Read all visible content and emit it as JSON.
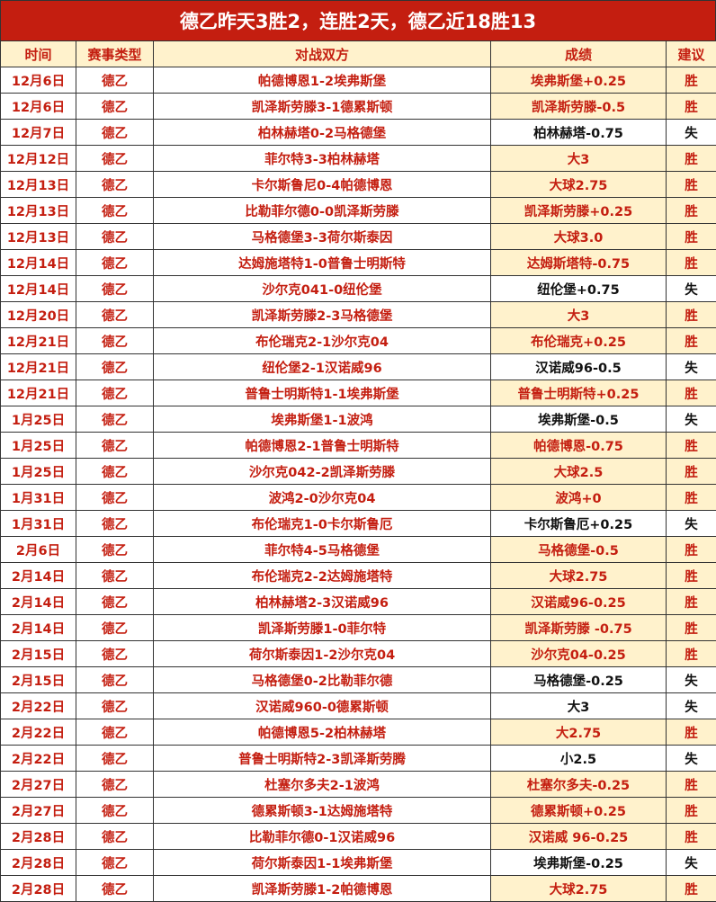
{
  "title": "德乙昨天3胜2，连胜2天，德乙近18胜13",
  "headers": [
    "时间",
    "赛事类型",
    "对战双方",
    "成绩",
    "建议"
  ],
  "colors": {
    "title_bg": "#c41e10",
    "header_bg": "#fff2cc",
    "win_text": "#c41e10",
    "loss_text": "#111111"
  },
  "rows": [
    [
      "12月6日",
      "德乙",
      "帕德博恩1-2埃弗斯堡",
      "埃弗斯堡+0.25",
      "胜"
    ],
    [
      "12月6日",
      "德乙",
      "凯泽斯劳滕3-1德累斯顿",
      "凯泽斯劳滕-0.5",
      "胜"
    ],
    [
      "12月7日",
      "德乙",
      "柏林赫塔0-2马格德堡",
      "柏林赫塔-0.75",
      "失"
    ],
    [
      "12月12日",
      "德乙",
      "菲尔特3-3柏林赫塔",
      "大3",
      "胜"
    ],
    [
      "12月13日",
      "德乙",
      "卡尔斯鲁尼0-4帕德博恩",
      "大球2.75",
      "胜"
    ],
    [
      "12月13日",
      "德乙",
      "比勒菲尔德0-0凯泽斯劳滕",
      "凯泽斯劳滕+0.25",
      "胜"
    ],
    [
      "12月13日",
      "德乙",
      "马格德堡3-3荷尔斯泰因",
      "大球3.0",
      "胜"
    ],
    [
      "12月14日",
      "德乙",
      "达姆施塔特1-0普鲁士明斯特",
      "达姆斯塔特-0.75",
      "胜"
    ],
    [
      "12月14日",
      "德乙",
      "沙尔克041-0纽伦堡",
      "纽伦堡+0.75",
      "失"
    ],
    [
      "12月20日",
      "德乙",
      "凯泽斯劳滕2-3马格德堡",
      "大3",
      "胜"
    ],
    [
      "12月21日",
      "德乙",
      "布伦瑞克2-1沙尔克04",
      "布伦瑞克+0.25",
      "胜"
    ],
    [
      "12月21日",
      "德乙",
      "纽伦堡2-1汉诺威96",
      "汉诺威96-0.5",
      "失"
    ],
    [
      "12月21日",
      "德乙",
      "普鲁士明斯特1-1埃弗斯堡",
      "普鲁士明斯特+0.25",
      "胜"
    ],
    [
      "1月25日",
      "德乙",
      "埃弗斯堡1-1波鸿",
      "埃弗斯堡-0.5",
      "失"
    ],
    [
      "1月25日",
      "德乙",
      "帕德博恩2-1普鲁士明斯特",
      "帕德博恩-0.75",
      "胜"
    ],
    [
      "1月25日",
      "德乙",
      "沙尔克042-2凯泽斯劳滕",
      "大球2.5",
      "胜"
    ],
    [
      "1月31日",
      "德乙",
      "波鸿2-0沙尔克04",
      "波鸿+0",
      "胜"
    ],
    [
      "1月31日",
      "德乙",
      "布伦瑞克1-0卡尔斯鲁厄",
      "卡尔斯鲁厄+0.25",
      "失"
    ],
    [
      "2月6日",
      "德乙",
      "菲尔特4-5马格德堡",
      "马格德堡-0.5",
      "胜"
    ],
    [
      "2月14日",
      "德乙",
      "布伦瑞克2-2达姆施塔特",
      "大球2.75",
      "胜"
    ],
    [
      "2月14日",
      "德乙",
      "柏林赫塔2-3汉诺威96",
      "汉诺威96-0.25",
      "胜"
    ],
    [
      "2月14日",
      "德乙",
      "凯泽斯劳滕1-0菲尔特",
      "凯泽斯劳滕 -0.75",
      "胜"
    ],
    [
      "2月15日",
      "德乙",
      "荷尔斯泰因1-2沙尔克04",
      "沙尔克04-0.25",
      "胜"
    ],
    [
      "2月15日",
      "德乙",
      "马格德堡0-2比勒菲尔德",
      "马格德堡-0.25",
      "失"
    ],
    [
      "2月22日",
      "德乙",
      "汉诺威960-0德累斯顿",
      "大3",
      "失"
    ],
    [
      "2月22日",
      "德乙",
      "帕德博恩5-2柏林赫塔",
      "大2.75",
      "胜"
    ],
    [
      "2月22日",
      "德乙",
      "普鲁士明斯特2-3凯泽斯劳腾",
      "小2.5",
      "失"
    ],
    [
      "2月27日",
      "德乙",
      "杜塞尔多夫2-1波鸿",
      "杜塞尔多夫-0.25",
      "胜"
    ],
    [
      "2月27日",
      "德乙",
      "德累斯顿3-1达姆施塔特",
      "德累斯顿+0.25",
      "胜"
    ],
    [
      "2月28日",
      "德乙",
      "比勒菲尔德0-1汉诺威96",
      "汉诺威 96-0.25",
      "胜"
    ],
    [
      "2月28日",
      "德乙",
      "荷尔斯泰因1-1埃弗斯堡",
      "埃弗斯堡-0.25",
      "失"
    ],
    [
      "2月28日",
      "德乙",
      "凯泽斯劳滕1-2帕德博恩",
      "大球2.75",
      "胜"
    ]
  ]
}
